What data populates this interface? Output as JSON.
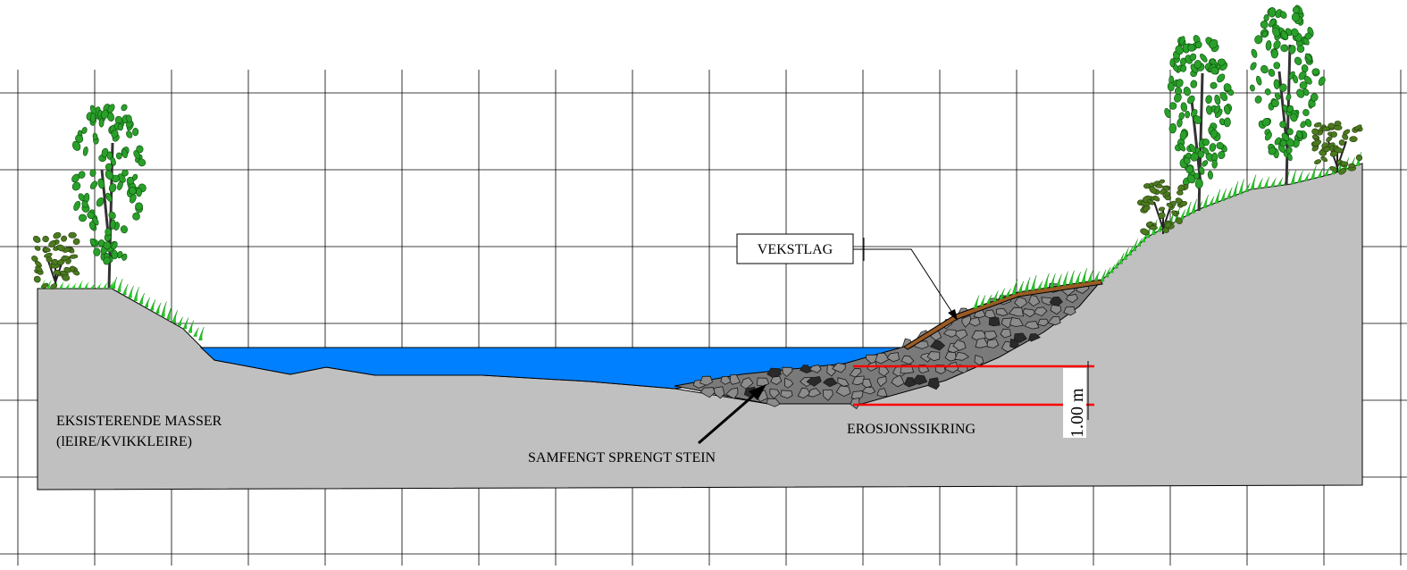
{
  "labels": {
    "vekstlag": "VEKSTLAG",
    "existing_line1": "EKSISTERENDE MASSER",
    "existing_line2": "(lEIRE/KVIKKLEIRE)",
    "riprap": "SAMFENGT SPRENGT STEIN",
    "erosion": "EROSJONSSIKRING",
    "dimension": "1.00 m"
  },
  "colors": {
    "ground": "#c0c0c0",
    "water": "#0080ff",
    "topsoil": "#9a5b25",
    "stone": "#7a7a7a",
    "stone_dark": "#2a2a2a",
    "dimension_line": "#ff0000",
    "grid": "#000000",
    "grass": "#22cc22",
    "tree_leaf": "#2aa02a",
    "shrub_leaf": "#4a7a1e"
  }
}
